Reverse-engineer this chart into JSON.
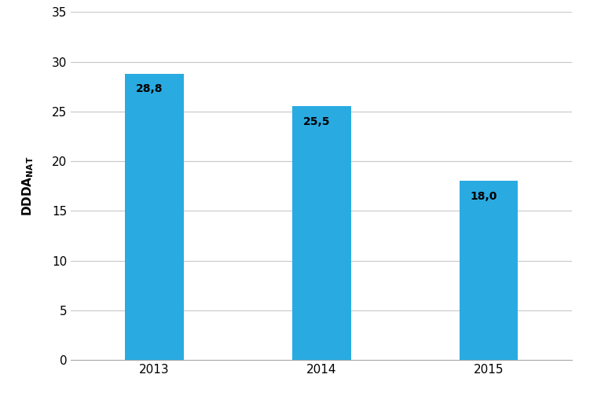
{
  "categories": [
    "2013",
    "2014",
    "2015"
  ],
  "values": [
    28.8,
    25.5,
    18.0
  ],
  "bar_color": "#29ABE2",
  "ylim": [
    0,
    35
  ],
  "yticks": [
    0,
    5,
    10,
    15,
    20,
    25,
    30,
    35
  ],
  "bar_labels": [
    "28,8",
    "25,5",
    "18,0"
  ],
  "label_fontsize": 10,
  "tick_fontsize": 11,
  "ylabel_fontsize": 11,
  "background_color": "#ffffff",
  "grid_color": "#c8c8c8",
  "bar_width": 0.35,
  "xlim": [
    -0.5,
    2.5
  ]
}
